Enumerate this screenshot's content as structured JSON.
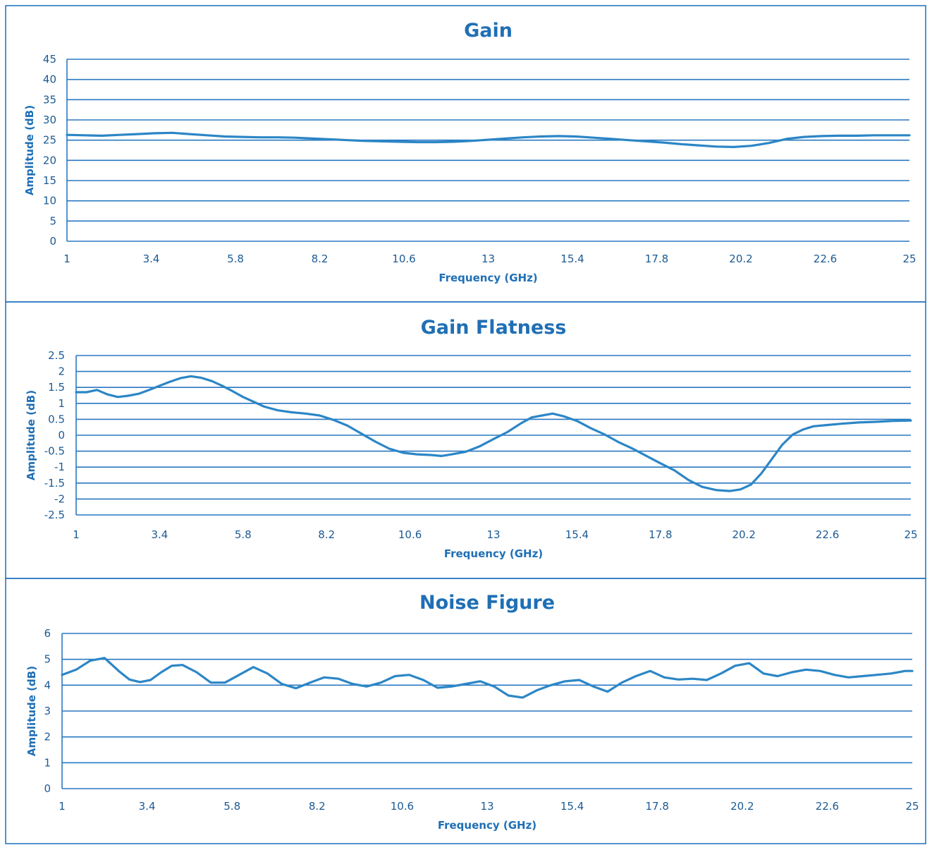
{
  "colors": {
    "frame": "#2a78c2",
    "grid": "#2a78c2",
    "series": "#2c86c6",
    "text": "#1f6fb5"
  },
  "chart_data": [
    {
      "type": "line",
      "title": "Gain",
      "xlabel": "Frequency (GHz)",
      "ylabel": "Amplitude (dB)",
      "xlim": [
        1,
        25
      ],
      "ylim": [
        0,
        45
      ],
      "x_ticks": [
        "1",
        "3.4",
        "5.8",
        "8.2",
        "10.6",
        "13",
        "15.4",
        "17.8",
        "20.2",
        "22.6",
        "25"
      ],
      "y_ticks": [
        "0",
        "5",
        "10",
        "15",
        "20",
        "25",
        "30",
        "35",
        "40",
        "45"
      ],
      "grid": true,
      "series": [
        {
          "x": [
            1,
            1.5,
            2,
            2.5,
            3,
            3.5,
            4,
            4.5,
            5,
            5.5,
            6,
            6.5,
            7,
            7.5,
            8,
            8.5,
            9,
            9.5,
            10,
            10.5,
            11,
            11.5,
            12,
            12.5,
            13,
            13.5,
            14,
            14.5,
            15,
            15.5,
            16,
            16.5,
            17,
            17.5,
            18,
            18.5,
            19,
            19.5,
            20,
            20.5,
            21,
            21.5,
            22,
            22.5,
            23,
            23.5,
            24,
            24.5,
            25
          ],
          "values": [
            26.3,
            26.2,
            26.1,
            26.3,
            26.5,
            26.7,
            26.8,
            26.5,
            26.2,
            25.9,
            25.8,
            25.7,
            25.7,
            25.6,
            25.4,
            25.2,
            25.0,
            24.8,
            24.7,
            24.6,
            24.5,
            24.5,
            24.6,
            24.8,
            25.1,
            25.4,
            25.7,
            25.9,
            26.0,
            25.9,
            25.6,
            25.3,
            25.0,
            24.7,
            24.4,
            24.0,
            23.7,
            23.4,
            23.3,
            23.6,
            24.3,
            25.3,
            25.8,
            26.0,
            26.1,
            26.1,
            26.2,
            26.2,
            26.2
          ]
        }
      ]
    },
    {
      "type": "line",
      "title": "Gain Flatness",
      "xlabel": "Frequency (GHz)",
      "ylabel": "Amplitude (dB)",
      "xlim": [
        1,
        25
      ],
      "ylim": [
        -2.5,
        2.5
      ],
      "x_ticks": [
        "1",
        "3.4",
        "5.8",
        "8.2",
        "10.6",
        "13",
        "15.4",
        "17.8",
        "20.2",
        "22.6",
        "25"
      ],
      "y_ticks": [
        "-2.5",
        "-2",
        "-1.5",
        "-1",
        "-0.5",
        "0",
        "0.5",
        "1",
        "1.5",
        "2",
        "2.5"
      ],
      "grid": true,
      "series": [
        {
          "x": [
            1,
            1.3,
            1.6,
            1.9,
            2.2,
            2.5,
            2.8,
            3.1,
            3.4,
            3.7,
            4.0,
            4.3,
            4.6,
            4.9,
            5.2,
            5.5,
            5.8,
            6.1,
            6.4,
            6.8,
            7.2,
            7.6,
            8.0,
            8.4,
            8.8,
            9.2,
            9.6,
            10.0,
            10.4,
            10.8,
            11.2,
            11.5,
            11.8,
            12.2,
            12.6,
            13.0,
            13.4,
            13.8,
            14.1,
            14.4,
            14.7,
            15.0,
            15.4,
            15.8,
            16.2,
            16.6,
            17.0,
            17.4,
            17.8,
            18.2,
            18.6,
            19.0,
            19.4,
            19.8,
            20.1,
            20.4,
            20.7,
            21.0,
            21.3,
            21.6,
            21.9,
            22.2,
            22.6,
            23.0,
            23.5,
            24.0,
            24.5,
            25.0
          ],
          "values": [
            1.35,
            1.35,
            1.42,
            1.28,
            1.2,
            1.24,
            1.3,
            1.42,
            1.55,
            1.68,
            1.79,
            1.85,
            1.8,
            1.7,
            1.55,
            1.38,
            1.2,
            1.05,
            0.9,
            0.78,
            0.72,
            0.68,
            0.62,
            0.48,
            0.3,
            0.05,
            -0.2,
            -0.42,
            -0.55,
            -0.6,
            -0.62,
            -0.65,
            -0.6,
            -0.52,
            -0.35,
            -0.12,
            0.1,
            0.38,
            0.56,
            0.62,
            0.68,
            0.6,
            0.45,
            0.22,
            0.02,
            -0.22,
            -0.42,
            -0.65,
            -0.88,
            -1.1,
            -1.4,
            -1.62,
            -1.72,
            -1.75,
            -1.7,
            -1.55,
            -1.2,
            -0.75,
            -0.3,
            0.02,
            0.18,
            0.28,
            0.32,
            0.36,
            0.4,
            0.42,
            0.45,
            0.46
          ]
        }
      ]
    },
    {
      "type": "line",
      "title": "Noise Figure",
      "xlabel": "Frequency (GHz)",
      "ylabel": "Amplitude (dB)",
      "xlim": [
        1,
        25
      ],
      "ylim": [
        0,
        6
      ],
      "x_ticks": [
        "1",
        "3.4",
        "5.8",
        "8.2",
        "10.6",
        "13",
        "15.4",
        "17.8",
        "20.2",
        "22.6",
        "25"
      ],
      "y_ticks": [
        "0",
        "1",
        "2",
        "3",
        "4",
        "5",
        "6"
      ],
      "grid": true,
      "series": [
        {
          "x": [
            1,
            1.4,
            1.8,
            2.2,
            2.6,
            2.9,
            3.2,
            3.5,
            3.8,
            4.1,
            4.4,
            4.8,
            5.2,
            5.6,
            6.0,
            6.4,
            6.8,
            7.2,
            7.6,
            8.0,
            8.4,
            8.8,
            9.2,
            9.6,
            10.0,
            10.4,
            10.8,
            11.2,
            11.6,
            12.0,
            12.4,
            12.8,
            13.2,
            13.6,
            14.0,
            14.4,
            14.8,
            15.2,
            15.6,
            16.0,
            16.4,
            16.8,
            17.2,
            17.6,
            18.0,
            18.4,
            18.8,
            19.2,
            19.6,
            20.0,
            20.4,
            20.8,
            21.2,
            21.6,
            22.0,
            22.4,
            22.8,
            23.2,
            23.6,
            24.0,
            24.4,
            24.8,
            25.0
          ],
          "values": [
            4.4,
            4.6,
            4.95,
            5.05,
            4.55,
            4.22,
            4.12,
            4.2,
            4.5,
            4.75,
            4.78,
            4.5,
            4.1,
            4.1,
            4.4,
            4.7,
            4.45,
            4.05,
            3.88,
            4.1,
            4.3,
            4.25,
            4.05,
            3.95,
            4.1,
            4.35,
            4.4,
            4.2,
            3.9,
            3.95,
            4.05,
            4.15,
            3.95,
            3.6,
            3.52,
            3.8,
            4.0,
            4.15,
            4.2,
            3.95,
            3.75,
            4.1,
            4.35,
            4.55,
            4.3,
            4.22,
            4.25,
            4.2,
            4.45,
            4.75,
            4.85,
            4.45,
            4.35,
            4.5,
            4.6,
            4.55,
            4.4,
            4.3,
            4.35,
            4.4,
            4.45,
            4.55,
            4.55
          ]
        }
      ]
    }
  ]
}
